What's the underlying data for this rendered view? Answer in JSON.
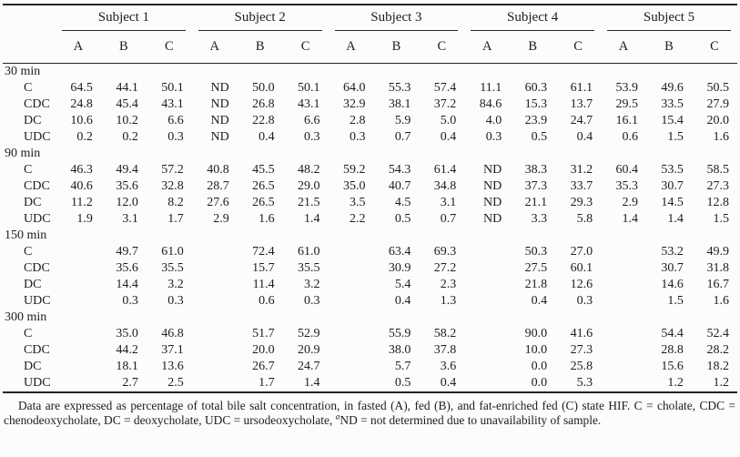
{
  "table": {
    "subjects": [
      "Subject 1",
      "Subject 2",
      "Subject 3",
      "Subject 4",
      "Subject 5"
    ],
    "conditions": [
      "A",
      "B",
      "C"
    ],
    "sections": [
      {
        "time": "30 min",
        "rows": [
          {
            "label": "C",
            "values": [
              "64.5",
              "44.1",
              "50.1",
              "ND",
              "50.0",
              "50.1",
              "64.0",
              "55.3",
              "57.4",
              "11.1",
              "60.3",
              "61.1",
              "53.9",
              "49.6",
              "50.5"
            ]
          },
          {
            "label": "CDC",
            "values": [
              "24.8",
              "45.4",
              "43.1",
              "ND",
              "26.8",
              "43.1",
              "32.9",
              "38.1",
              "37.2",
              "84.6",
              "15.3",
              "13.7",
              "29.5",
              "33.5",
              "27.9"
            ]
          },
          {
            "label": "DC",
            "values": [
              "10.6",
              "10.2",
              "6.6",
              "ND",
              "22.8",
              "6.6",
              "2.8",
              "5.9",
              "5.0",
              "4.0",
              "23.9",
              "24.7",
              "16.1",
              "15.4",
              "20.0"
            ]
          },
          {
            "label": "UDC",
            "values": [
              "0.2",
              "0.2",
              "0.3",
              "ND",
              "0.4",
              "0.3",
              "0.3",
              "0.7",
              "0.4",
              "0.3",
              "0.5",
              "0.4",
              "0.6",
              "1.5",
              "1.6"
            ]
          }
        ]
      },
      {
        "time": "90 min",
        "rows": [
          {
            "label": "C",
            "values": [
              "46.3",
              "49.4",
              "57.2",
              "40.8",
              "45.5",
              "48.2",
              "59.2",
              "54.3",
              "61.4",
              "ND",
              "38.3",
              "31.2",
              "60.4",
              "53.5",
              "58.5"
            ]
          },
          {
            "label": "CDC",
            "values": [
              "40.6",
              "35.6",
              "32.8",
              "28.7",
              "26.5",
              "29.0",
              "35.0",
              "40.7",
              "34.8",
              "ND",
              "37.3",
              "33.7",
              "35.3",
              "30.7",
              "27.3"
            ]
          },
          {
            "label": "DC",
            "values": [
              "11.2",
              "12.0",
              "8.2",
              "27.6",
              "26.5",
              "21.5",
              "3.5",
              "4.5",
              "3.1",
              "ND",
              "21.1",
              "29.3",
              "2.9",
              "14.5",
              "12.8"
            ]
          },
          {
            "label": "UDC",
            "values": [
              "1.9",
              "3.1",
              "1.7",
              "2.9",
              "1.6",
              "1.4",
              "2.2",
              "0.5",
              "0.7",
              "ND",
              "3.3",
              "5.8",
              "1.4",
              "1.4",
              "1.5"
            ]
          }
        ]
      },
      {
        "time": "150 min",
        "rows": [
          {
            "label": "C",
            "values": [
              "",
              "49.7",
              "61.0",
              "",
              "72.4",
              "61.0",
              "",
              "63.4",
              "69.3",
              "",
              "50.3",
              "27.0",
              "",
              "53.2",
              "49.9"
            ]
          },
          {
            "label": "CDC",
            "values": [
              "",
              "35.6",
              "35.5",
              "",
              "15.7",
              "35.5",
              "",
              "30.9",
              "27.2",
              "",
              "27.5",
              "60.1",
              "",
              "30.7",
              "31.8"
            ]
          },
          {
            "label": "DC",
            "values": [
              "",
              "14.4",
              "3.2",
              "",
              "11.4",
              "3.2",
              "",
              "5.4",
              "2.3",
              "",
              "21.8",
              "12.6",
              "",
              "14.6",
              "16.7"
            ]
          },
          {
            "label": "UDC",
            "values": [
              "",
              "0.3",
              "0.3",
              "",
              "0.6",
              "0.3",
              "",
              "0.4",
              "1.3",
              "",
              "0.4",
              "0.3",
              "",
              "1.5",
              "1.6"
            ]
          }
        ]
      },
      {
        "time": "300 min",
        "rows": [
          {
            "label": "C",
            "values": [
              "",
              "35.0",
              "46.8",
              "",
              "51.7",
              "52.9",
              "",
              "55.9",
              "58.2",
              "",
              "90.0",
              "41.6",
              "",
              "54.4",
              "52.4"
            ]
          },
          {
            "label": "CDC",
            "values": [
              "",
              "44.2",
              "37.1",
              "",
              "20.0",
              "20.9",
              "",
              "38.0",
              "37.8",
              "",
              "10.0",
              "27.3",
              "",
              "28.8",
              "28.2"
            ]
          },
          {
            "label": "DC",
            "values": [
              "",
              "18.1",
              "13.6",
              "",
              "26.7",
              "24.7",
              "",
              "5.7",
              "3.6",
              "",
              "0.0",
              "25.8",
              "",
              "15.6",
              "18.2"
            ]
          },
          {
            "label": "UDC",
            "values": [
              "",
              "2.7",
              "2.5",
              "",
              "1.7",
              "1.4",
              "",
              "0.5",
              "0.4",
              "",
              "0.0",
              "5.3",
              "",
              "1.2",
              "1.2"
            ]
          }
        ]
      }
    ]
  },
  "footnote": {
    "text_before_sup": "Data are expressed as percentage of total bile salt concentration, in fasted (A), fed (B), and fat-enriched fed (C) state HIF. C = cholate, CDC = chenodeoxycholate, DC = deoxycholate, UDC = ursodeoxycholate, ",
    "sup": "a",
    "text_after_sup": "ND = not determined due to unavailability of sample."
  }
}
